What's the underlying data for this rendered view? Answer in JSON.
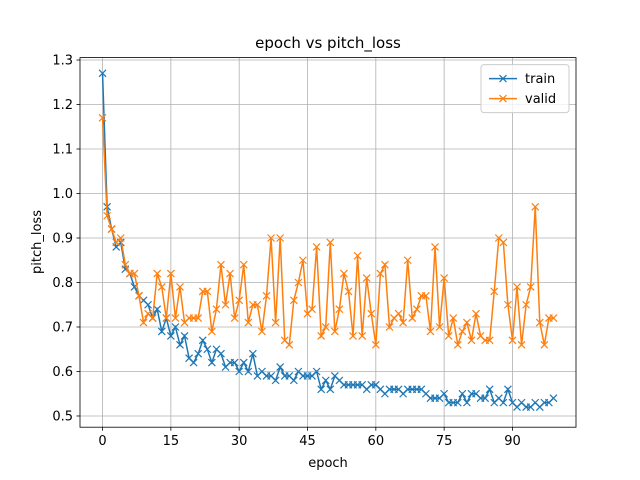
{
  "chart_data": {
    "type": "line",
    "title": "epoch vs pitch_loss",
    "xlabel": "epoch",
    "ylabel": "pitch_loss",
    "x": [
      0,
      1,
      2,
      3,
      4,
      5,
      6,
      7,
      8,
      9,
      10,
      11,
      12,
      13,
      14,
      15,
      16,
      17,
      18,
      19,
      20,
      21,
      22,
      23,
      24,
      25,
      26,
      27,
      28,
      29,
      30,
      31,
      32,
      33,
      34,
      35,
      36,
      37,
      38,
      39,
      40,
      41,
      42,
      43,
      44,
      45,
      46,
      47,
      48,
      49,
      50,
      51,
      52,
      53,
      54,
      55,
      56,
      57,
      58,
      59,
      60,
      61,
      62,
      63,
      64,
      65,
      66,
      67,
      68,
      69,
      70,
      71,
      72,
      73,
      74,
      75,
      76,
      77,
      78,
      79,
      80,
      81,
      82,
      83,
      84,
      85,
      86,
      87,
      88,
      89,
      90,
      91,
      92,
      93,
      94,
      95,
      96,
      97,
      98,
      99
    ],
    "series": [
      {
        "name": "train",
        "color": "#1f77b4",
        "values": [
          1.27,
          0.97,
          0.92,
          0.88,
          0.89,
          0.83,
          0.82,
          0.79,
          0.77,
          0.76,
          0.75,
          0.72,
          0.74,
          0.69,
          0.72,
          0.68,
          0.7,
          0.66,
          0.68,
          0.63,
          0.62,
          0.64,
          0.67,
          0.65,
          0.62,
          0.65,
          0.64,
          0.61,
          0.62,
          0.62,
          0.6,
          0.62,
          0.6,
          0.64,
          0.59,
          0.6,
          0.59,
          0.59,
          0.58,
          0.61,
          0.59,
          0.59,
          0.58,
          0.6,
          0.59,
          0.59,
          0.59,
          0.6,
          0.56,
          0.58,
          0.56,
          0.59,
          0.58,
          0.57,
          0.57,
          0.57,
          0.57,
          0.57,
          0.56,
          0.57,
          0.57,
          0.56,
          0.55,
          0.56,
          0.56,
          0.56,
          0.55,
          0.56,
          0.56,
          0.56,
          0.56,
          0.55,
          0.54,
          0.54,
          0.54,
          0.55,
          0.53,
          0.53,
          0.53,
          0.55,
          0.53,
          0.55,
          0.55,
          0.54,
          0.54,
          0.56,
          0.53,
          0.54,
          0.53,
          0.56,
          0.53,
          0.52,
          0.53,
          0.52,
          0.52,
          0.53,
          0.52,
          0.53,
          0.53,
          0.54
        ]
      },
      {
        "name": "valid",
        "color": "#ff7f0e",
        "values": [
          1.17,
          0.95,
          0.92,
          0.89,
          0.9,
          0.84,
          0.82,
          0.82,
          0.77,
          0.71,
          0.73,
          0.72,
          0.82,
          0.79,
          0.72,
          0.82,
          0.72,
          0.79,
          0.71,
          0.72,
          0.72,
          0.72,
          0.78,
          0.78,
          0.69,
          0.74,
          0.84,
          0.75,
          0.82,
          0.72,
          0.76,
          0.84,
          0.71,
          0.75,
          0.75,
          0.69,
          0.77,
          0.9,
          0.71,
          0.9,
          0.67,
          0.66,
          0.76,
          0.8,
          0.85,
          0.73,
          0.74,
          0.88,
          0.68,
          0.7,
          0.89,
          0.69,
          0.74,
          0.82,
          0.78,
          0.68,
          0.86,
          0.68,
          0.81,
          0.73,
          0.66,
          0.82,
          0.84,
          0.7,
          0.72,
          0.73,
          0.71,
          0.85,
          0.72,
          0.74,
          0.77,
          0.77,
          0.69,
          0.88,
          0.7,
          0.81,
          0.68,
          0.72,
          0.66,
          0.69,
          0.71,
          0.67,
          0.73,
          0.68,
          0.67,
          0.67,
          0.78,
          0.9,
          0.89,
          0.75,
          0.67,
          0.79,
          0.66,
          0.75,
          0.79,
          0.97,
          0.71,
          0.66,
          0.72,
          0.72
        ]
      }
    ],
    "xlim": [
      -4.95,
      103.95
    ],
    "xticks": [
      0,
      15,
      30,
      45,
      60,
      75,
      90
    ],
    "ylim": [
      0.4748,
      1.3054
    ],
    "yticks": [
      0.5,
      0.6,
      0.7,
      0.8,
      0.9,
      {
        "value": 1.0,
        "label": "1.0"
      },
      1.1,
      1.2,
      1.3
    ],
    "grid": true,
    "legend": "upper right"
  }
}
